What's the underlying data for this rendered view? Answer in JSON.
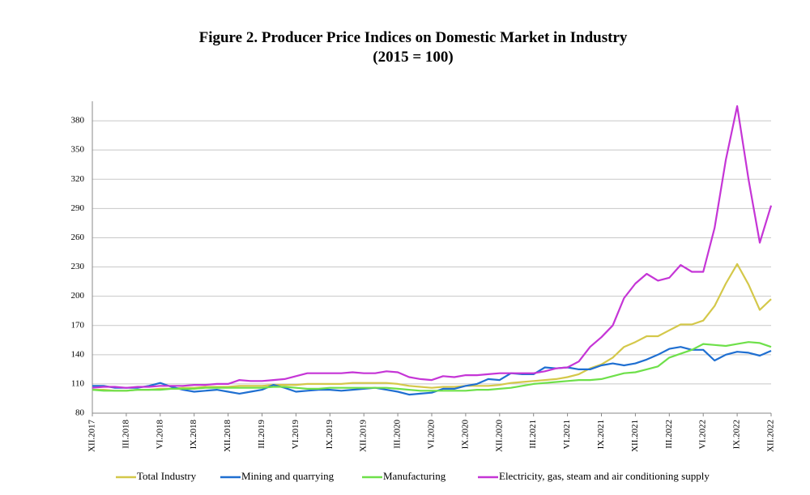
{
  "chart_data": {
    "type": "line",
    "title": "Figure 2. Producer Price Indices on Domestic Market in Industry",
    "subtitle": "(2015 = 100)",
    "categories": [
      "XII.2017",
      null,
      null,
      "III.2018",
      null,
      null,
      "VI.2018",
      null,
      null,
      "IX.2018",
      null,
      null,
      "XII.2018",
      null,
      null,
      "III.2019",
      null,
      null,
      "VI.2019",
      null,
      null,
      "IX.2019",
      null,
      null,
      "XII.2019",
      null,
      null,
      "III.2020",
      null,
      null,
      "VI.2020",
      null,
      null,
      "IX.2020",
      null,
      null,
      "XII.2020",
      null,
      null,
      "III.2021",
      null,
      null,
      "VI.2021",
      null,
      null,
      "IX.2021",
      null,
      null,
      "XII.2021",
      null,
      null,
      "III.2022",
      null,
      null,
      "VI.2022",
      null,
      null,
      "IX.2022",
      null,
      null,
      "XII.2022"
    ],
    "series": [
      {
        "name": "Total Industry",
        "color": "#d4c84a",
        "values": [
          104,
          104,
          103,
          103,
          104,
          104,
          105,
          105,
          106,
          106,
          107,
          107,
          107,
          108,
          108,
          108,
          109,
          109,
          109,
          110,
          110,
          110,
          110,
          111,
          111,
          111,
          111,
          110,
          108,
          107,
          106,
          107,
          107,
          108,
          108,
          108,
          109,
          111,
          112,
          113,
          114,
          115,
          117,
          120,
          126,
          130,
          137,
          148,
          153,
          159,
          159,
          165,
          171,
          171,
          175,
          190,
          213,
          233,
          212,
          186,
          197
        ]
      },
      {
        "name": "Mining and quarrying",
        "color": "#1f6fd1",
        "values": [
          108,
          108,
          106,
          106,
          106,
          108,
          111,
          107,
          104,
          102,
          103,
          104,
          102,
          100,
          102,
          104,
          109,
          106,
          102,
          103,
          104,
          104,
          103,
          104,
          105,
          106,
          104,
          102,
          99,
          100,
          101,
          105,
          105,
          108,
          110,
          115,
          114,
          121,
          120,
          120,
          127,
          126,
          127,
          125,
          125,
          129,
          131,
          129,
          131,
          135,
          140,
          146,
          148,
          145,
          145,
          134,
          140,
          143,
          142,
          139,
          144
        ]
      },
      {
        "name": "Manufacturing",
        "color": "#6ee04a",
        "values": [
          104,
          103,
          103,
          103,
          104,
          104,
          104,
          105,
          105,
          105,
          106,
          106,
          106,
          106,
          106,
          106,
          107,
          107,
          106,
          105,
          105,
          106,
          106,
          106,
          106,
          106,
          106,
          105,
          104,
          103,
          103,
          103,
          103,
          103,
          104,
          104,
          105,
          106,
          108,
          110,
          111,
          112,
          113,
          114,
          114,
          115,
          118,
          121,
          122,
          125,
          128,
          137,
          141,
          145,
          151,
          150,
          149,
          151,
          153,
          152,
          148
        ]
      },
      {
        "name": "Electricity, gas, steam and air conditioning supply",
        "color": "#c535d6",
        "values": [
          106,
          107,
          107,
          106,
          107,
          107,
          108,
          108,
          108,
          109,
          109,
          110,
          110,
          114,
          113,
          113,
          114,
          115,
          118,
          121,
          121,
          121,
          121,
          122,
          121,
          121,
          123,
          122,
          117,
          115,
          114,
          118,
          117,
          119,
          119,
          120,
          121,
          121,
          121,
          121,
          123,
          126,
          127,
          133,
          148,
          158,
          170,
          198,
          213,
          223,
          216,
          219,
          232,
          225,
          225,
          270,
          340,
          395,
          320,
          255,
          293
        ]
      }
    ],
    "ylim": [
      80,
      400
    ],
    "yticks": [
      80,
      110,
      140,
      170,
      200,
      230,
      260,
      290,
      320,
      350,
      380
    ],
    "grid": true
  }
}
